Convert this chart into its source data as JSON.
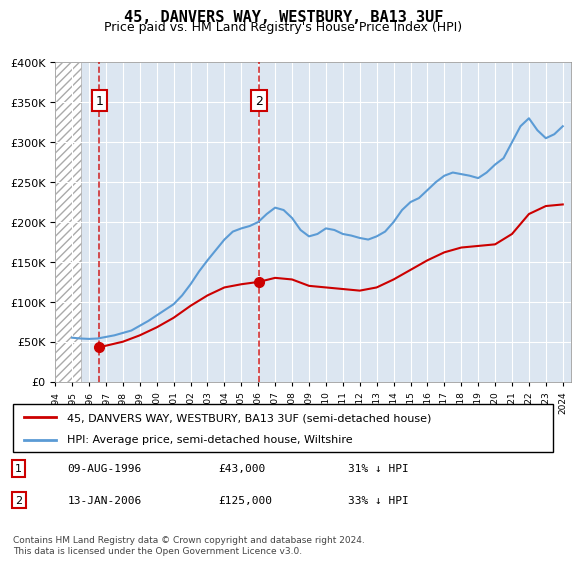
{
  "title": "45, DANVERS WAY, WESTBURY, BA13 3UF",
  "subtitle": "Price paid vs. HM Land Registry's House Price Index (HPI)",
  "legend_line1": "45, DANVERS WAY, WESTBURY, BA13 3UF (semi-detached house)",
  "legend_line2": "HPI: Average price, semi-detached house, Wiltshire",
  "footer": "Contains HM Land Registry data © Crown copyright and database right 2024.\nThis data is licensed under the Open Government Licence v3.0.",
  "red_color": "#cc0000",
  "blue_color": "#5b9bd5",
  "hatch_color": "#cccccc",
  "purchase1": {
    "date": "09-AUG-1996",
    "price": 43000,
    "pct": "31%",
    "x": 1996.61
  },
  "purchase2": {
    "date": "13-JAN-2006",
    "price": 125000,
    "pct": "33%",
    "x": 2006.04
  },
  "xmin": 1994,
  "xmax": 2024.5,
  "ymin": 0,
  "ymax": 400000,
  "hatch_end": 1995.5,
  "hpi_years": [
    1995,
    1995.5,
    1996,
    1996.5,
    1997,
    1997.5,
    1998,
    1998.5,
    1999,
    1999.5,
    2000,
    2000.5,
    2001,
    2001.5,
    2002,
    2002.5,
    2003,
    2003.5,
    2004,
    2004.5,
    2005,
    2005.5,
    2006,
    2006.5,
    2007,
    2007.5,
    2008,
    2008.5,
    2009,
    2009.5,
    2010,
    2010.5,
    2011,
    2011.5,
    2012,
    2012.5,
    2013,
    2013.5,
    2014,
    2014.5,
    2015,
    2015.5,
    2016,
    2016.5,
    2017,
    2017.5,
    2018,
    2018.5,
    2019,
    2019.5,
    2020,
    2020.5,
    2021,
    2021.5,
    2022,
    2022.5,
    2023,
    2023.5,
    2024
  ],
  "hpi_values": [
    55000,
    54000,
    53500,
    54000,
    56000,
    58000,
    61000,
    64000,
    70000,
    76000,
    83000,
    90000,
    97000,
    108000,
    122000,
    138000,
    152000,
    165000,
    178000,
    188000,
    192000,
    195000,
    200000,
    210000,
    218000,
    215000,
    205000,
    190000,
    182000,
    185000,
    192000,
    190000,
    185000,
    183000,
    180000,
    178000,
    182000,
    188000,
    200000,
    215000,
    225000,
    230000,
    240000,
    250000,
    258000,
    262000,
    260000,
    258000,
    255000,
    262000,
    272000,
    280000,
    300000,
    320000,
    330000,
    315000,
    305000,
    310000,
    320000
  ],
  "red_years": [
    1996.61,
    1997,
    1998,
    1999,
    2000,
    2001,
    2002,
    2003,
    2004,
    2005,
    2006.04,
    2007,
    2008,
    2009,
    2010,
    2011,
    2012,
    2013,
    2014,
    2015,
    2016,
    2017,
    2018,
    2019,
    2020,
    2021,
    2022,
    2023,
    2024
  ],
  "red_values": [
    43000,
    45000,
    50000,
    58000,
    68000,
    80000,
    95000,
    108000,
    118000,
    122000,
    125000,
    130000,
    128000,
    120000,
    118000,
    116000,
    114000,
    118000,
    128000,
    140000,
    152000,
    162000,
    168000,
    170000,
    172000,
    185000,
    210000,
    220000,
    222000
  ]
}
